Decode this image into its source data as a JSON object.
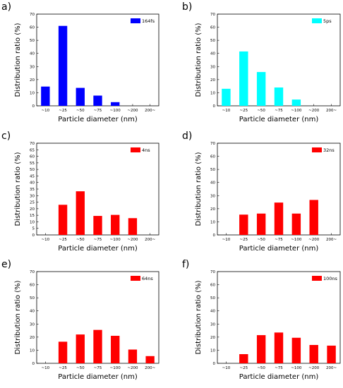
{
  "figure": {
    "panels": [
      "a)",
      "b)",
      "c)",
      "d)",
      "e)",
      "f)"
    ]
  },
  "chart_data": [
    {
      "type": "bar",
      "panel": "a)",
      "categories": [
        "~10",
        "~25",
        "~50",
        "~75",
        "~100",
        "~200",
        "200~"
      ],
      "series": [
        {
          "name": "164fs",
          "values": [
            14.7,
            61.0,
            13.7,
            7.8,
            2.8,
            0,
            0
          ],
          "color": "#0000ff"
        }
      ],
      "xlabel": "Particle diameter (nm)",
      "ylabel": "Distribution ratio (%)",
      "ylim": [
        0,
        70
      ],
      "yticks": [
        0,
        10,
        20,
        30,
        40,
        50,
        60,
        70
      ],
      "legend": "top-right",
      "grid": false
    },
    {
      "type": "bar",
      "panel": "b)",
      "categories": [
        "~10",
        "~25",
        "~50",
        "~75",
        "~100",
        "~200",
        "200~"
      ],
      "series": [
        {
          "name": "5ps",
          "values": [
            13.0,
            41.5,
            25.8,
            14.0,
            4.8,
            0,
            0
          ],
          "color": "#00ffff"
        }
      ],
      "xlabel": "Particle diameter (nm)",
      "ylabel": "Distribution ratio (%)",
      "ylim": [
        0,
        70
      ],
      "yticks": [
        0,
        10,
        20,
        30,
        40,
        50,
        60,
        70
      ],
      "legend": "top-right",
      "grid": false
    },
    {
      "type": "bar",
      "panel": "c)",
      "categories": [
        "~10",
        "~25",
        "~50",
        "~75",
        "~100",
        "~200",
        "200~"
      ],
      "series": [
        {
          "name": "4ns",
          "values": [
            0,
            23.0,
            33.3,
            14.5,
            15.3,
            12.8,
            0
          ],
          "color": "#ff0000"
        }
      ],
      "xlabel": "Particle diameter (nm)",
      "ylabel": "Distribution ratio (%)",
      "ylim": [
        0,
        70
      ],
      "yticks": [
        0,
        5,
        10,
        15,
        20,
        25,
        30,
        35,
        40,
        45,
        50,
        55,
        60,
        65,
        70
      ],
      "legend": "top-right",
      "grid": false
    },
    {
      "type": "bar",
      "panel": "d)",
      "categories": [
        "~10",
        "~25",
        "~50",
        "~75",
        "~100",
        "~200",
        "200~"
      ],
      "series": [
        {
          "name": "32ns",
          "values": [
            0,
            15.5,
            16.3,
            24.7,
            16.3,
            26.7,
            0
          ],
          "color": "#ff0000"
        }
      ],
      "xlabel": "Particle diameter (nm)",
      "ylabel": "Distribution ratio (%)",
      "ylim": [
        0,
        70
      ],
      "yticks": [
        0,
        10,
        20,
        30,
        40,
        50,
        60,
        70
      ],
      "legend": "top-right",
      "grid": false
    },
    {
      "type": "bar",
      "panel": "e)",
      "categories": [
        "~10",
        "~25",
        "~50",
        "~75",
        "~100",
        "~200",
        "200~"
      ],
      "series": [
        {
          "name": "64ns",
          "values": [
            0,
            16.5,
            22.0,
            25.5,
            21.0,
            10.5,
            5.5
          ],
          "color": "#ff0000"
        }
      ],
      "xlabel": "Particle diameter (nm)",
      "ylabel": "Distribution ratio (%)",
      "ylim": [
        0,
        70
      ],
      "yticks": [
        0,
        10,
        20,
        30,
        40,
        50,
        60,
        70
      ],
      "legend": "top-right",
      "grid": false
    },
    {
      "type": "bar",
      "panel": "f)",
      "categories": [
        "~10",
        "~25",
        "~50",
        "~75",
        "~100",
        "~200",
        "200~"
      ],
      "series": [
        {
          "name": "100ns",
          "values": [
            0,
            7.0,
            21.5,
            23.5,
            19.5,
            14.0,
            13.5
          ],
          "color": "#ff0000"
        }
      ],
      "xlabel": "Particle diameter (nm)",
      "ylabel": "Distribution ratio (%)",
      "ylim": [
        0,
        70
      ],
      "yticks": [
        0,
        10,
        20,
        30,
        40,
        50,
        60,
        70
      ],
      "legend": "top-right",
      "grid": false
    }
  ]
}
